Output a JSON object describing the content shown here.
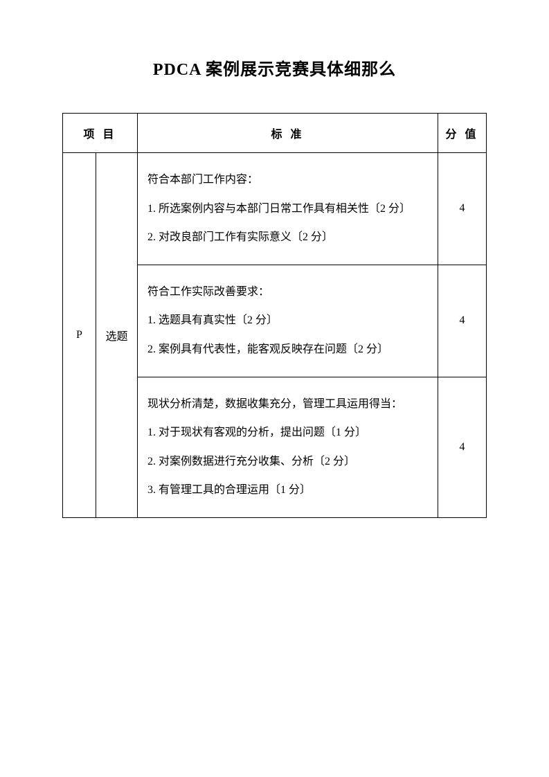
{
  "title": "PDCA 案例展示竞赛具体细那么",
  "table": {
    "headers": {
      "item": "项 目",
      "standard": "标  准",
      "score": "分 值"
    },
    "p_label": "P",
    "item_label": "选题",
    "rows": [
      {
        "head": "符合本部门工作内容：",
        "lines": [
          "1. 所选案例内容与本部门日常工作具有相关性〔2 分〕",
          "2. 对改良部门工作有实际意义〔2 分〕"
        ],
        "score": "4"
      },
      {
        "head": "符合工作实际改善要求：",
        "lines": [
          "1. 选题具有真实性〔2 分〕",
          "2. 案例具有代表性，能客观反映存在问题〔2 分〕"
        ],
        "score": "4"
      },
      {
        "head": "现状分析清楚，数据收集充分，管理工具运用得当：",
        "lines": [
          "1. 对于现状有客观的分析，提出问题〔1 分〕",
          "2. 对案例数据进行充分收集、分析〔2 分〕",
          "3. 有管理工具的合理运用〔1 分〕"
        ],
        "score": "4"
      }
    ]
  }
}
